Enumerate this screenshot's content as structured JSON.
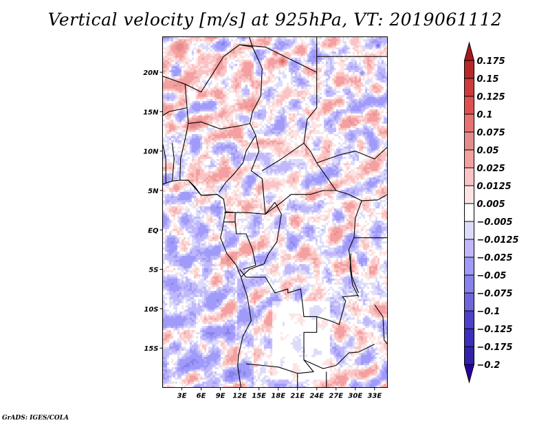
{
  "chart_data": {
    "type": "heatmap",
    "title": "Vertical velocity [m/s] at 925hPa, VT: 2019061112",
    "variable": "Vertical velocity",
    "units": "m/s",
    "level": "925hPa",
    "valid_time": "2019061112",
    "xlabel": "",
    "ylabel": "",
    "x_axis": {
      "range_deg": [
        0,
        35
      ],
      "ticks": [
        3,
        6,
        9,
        12,
        15,
        18,
        21,
        24,
        27,
        30,
        33
      ],
      "tick_labels": [
        "3E",
        "6E",
        "9E",
        "12E",
        "15E",
        "18E",
        "21E",
        "24E",
        "27E",
        "30E",
        "33E"
      ]
    },
    "y_axis": {
      "range_deg": [
        -20,
        24.5
      ],
      "ticks": [
        20,
        15,
        10,
        5,
        0,
        -5,
        -10,
        -15
      ],
      "tick_labels": [
        "20N",
        "15N",
        "10N",
        "5N",
        "EQ",
        "5S",
        "10S",
        "15S"
      ]
    },
    "colorbar": {
      "placement": "right",
      "orientation": "vertical",
      "extend": "both",
      "levels": [
        0.175,
        0.15,
        0.125,
        0.1,
        0.075,
        0.05,
        0.025,
        0.0125,
        0.005,
        -0.005,
        -0.0125,
        -0.025,
        -0.05,
        -0.075,
        -0.1,
        -0.125,
        -0.175,
        -0.2
      ],
      "level_labels": [
        "0.175",
        "0.15",
        "0.125",
        "0.1",
        "0.075",
        "0.05",
        "0.025",
        "0.0125",
        "0.005",
        "-0.005",
        "-0.0125",
        "-0.025",
        "-0.05",
        "-0.075",
        "-0.1",
        "-0.125",
        "-0.175",
        "-0.2"
      ],
      "colors": [
        "#a8181e",
        "#b82828",
        "#cc3c3c",
        "#e05050",
        "#e87272",
        "#e48c8c",
        "#f4a0a0",
        "#fac4c4",
        "#fde4e4",
        "#ffffff",
        "#dcdcfa",
        "#c0b8fa",
        "#a09af8",
        "#8882ec",
        "#7066dc",
        "#4e40cc",
        "#3e2ebe",
        "#3222aa",
        "#2800a0"
      ]
    },
    "map": {
      "region": "Central Africa",
      "overlay": "country borders and coastlines"
    }
  },
  "footer": {
    "credit": "GrADS: IGES/COLA"
  }
}
